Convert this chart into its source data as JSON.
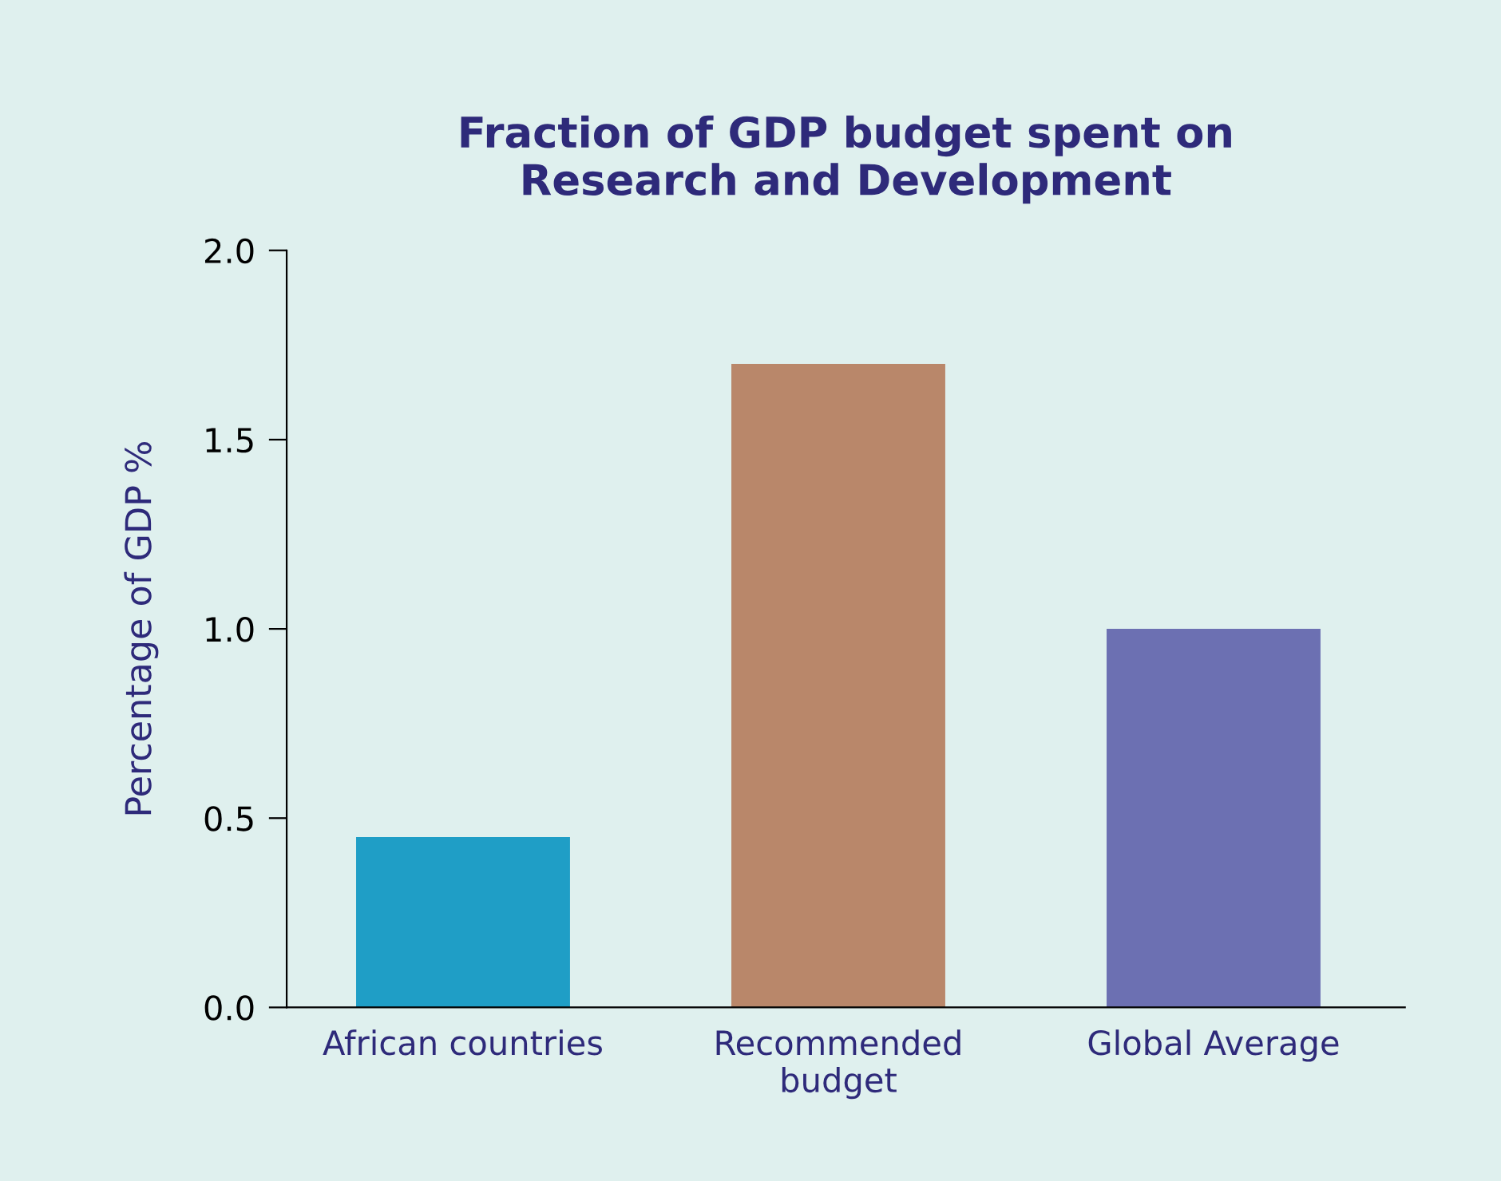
{
  "chart_data": {
    "type": "bar",
    "title": "Fraction of GDP budget spent on\nResearch and Development",
    "ylabel": "Percentage of GDP %",
    "categories": [
      "African countries",
      "Recommended\nbudget",
      "Global Average"
    ],
    "values": [
      0.45,
      1.7,
      1.0
    ],
    "colors": [
      "#1f9ec6",
      "#b9876a",
      "#6c70b2"
    ],
    "ylim": [
      0,
      2.0
    ],
    "yticks": [
      {
        "value": 0,
        "label": "0.0"
      },
      {
        "value": 0.5,
        "label": "0.5"
      },
      {
        "value": 1.0,
        "label": "1.0"
      },
      {
        "value": 1.5,
        "label": "1.5"
      },
      {
        "value": 2.0,
        "label": "2.0"
      }
    ],
    "grid": false
  }
}
